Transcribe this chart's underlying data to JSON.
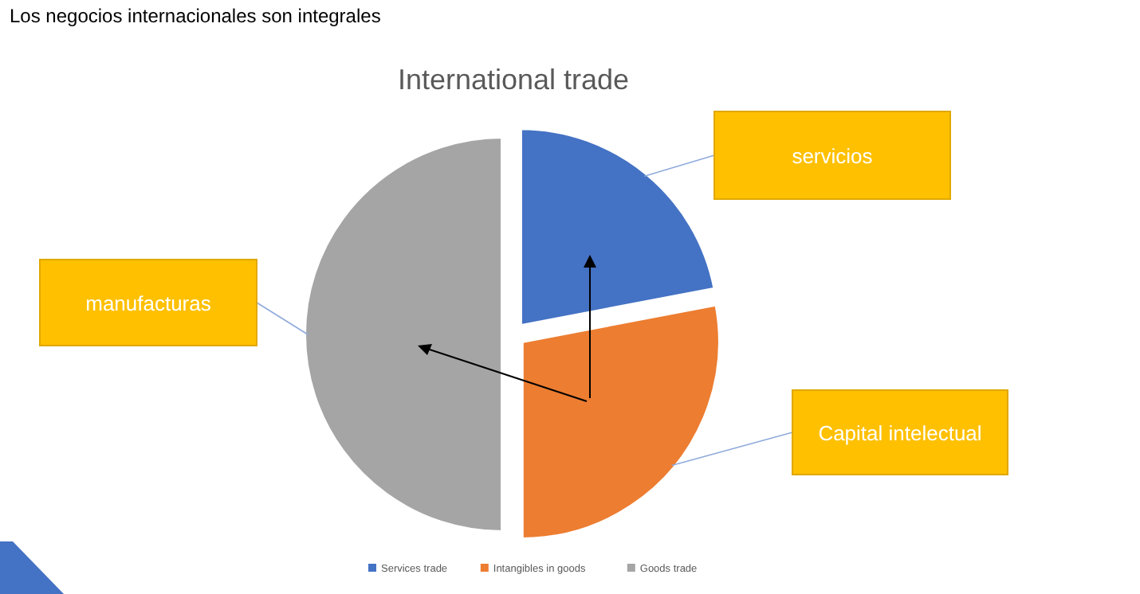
{
  "chart_data": {
    "type": "pie",
    "title": "Los negocios internacionales son integrales",
    "subtitle": "International trade",
    "categories": [
      "Services trade",
      "Intangibles in goods",
      "Goods trade"
    ],
    "values": [
      22,
      28,
      50
    ],
    "colors": [
      "#4472c4",
      "#ed7d31",
      "#a5a5a5"
    ],
    "annotations": [
      "servicios",
      "Capital intelectual",
      "manufacturas"
    ],
    "legend": "bottom"
  }
}
